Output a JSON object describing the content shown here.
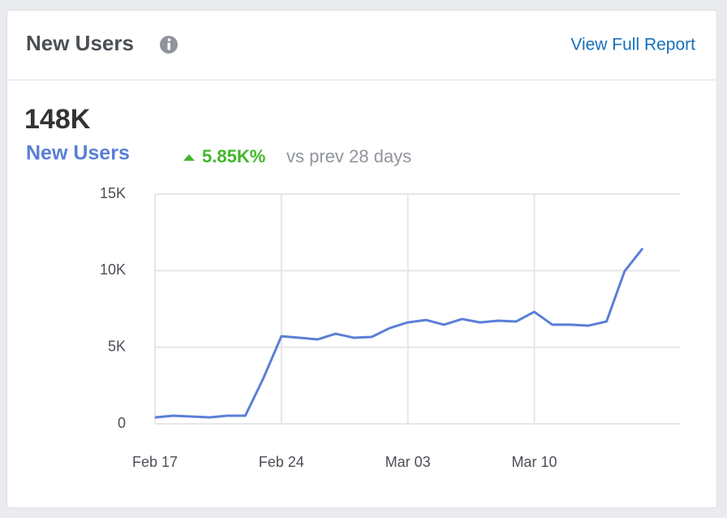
{
  "header": {
    "title": "New Users",
    "link": "View Full Report"
  },
  "summary": {
    "total": "148K",
    "change": "5.85K%",
    "comparison": "vs prev 28 days"
  },
  "chart_data": {
    "type": "line",
    "categories": [
      "Feb 17",
      null,
      null,
      null,
      null,
      null,
      null,
      "Feb 24",
      null,
      null,
      null,
      null,
      null,
      null,
      "Mar 03",
      null,
      null,
      null,
      null,
      null,
      null,
      "Mar 10",
      null,
      null,
      null,
      null,
      null,
      null
    ],
    "series": [
      {
        "name": "New Users",
        "color": "#5b7fd6",
        "values": [
          420,
          530,
          480,
          420,
          530,
          530,
          2970,
          5720,
          5620,
          5510,
          5880,
          5620,
          5670,
          6250,
          6620,
          6780,
          6470,
          6840,
          6620,
          6730,
          6680,
          7310,
          6470,
          6470,
          6410,
          6680,
          9960,
          11450
        ]
      }
    ],
    "ylim": [
      0,
      15000
    ],
    "yticks": [
      0,
      {
        "value": 5000,
        "label": "5K"
      },
      {
        "value": 10000,
        "label": "10K"
      },
      {
        "value": 15000,
        "label": "15K"
      }
    ],
    "grid": true
  }
}
